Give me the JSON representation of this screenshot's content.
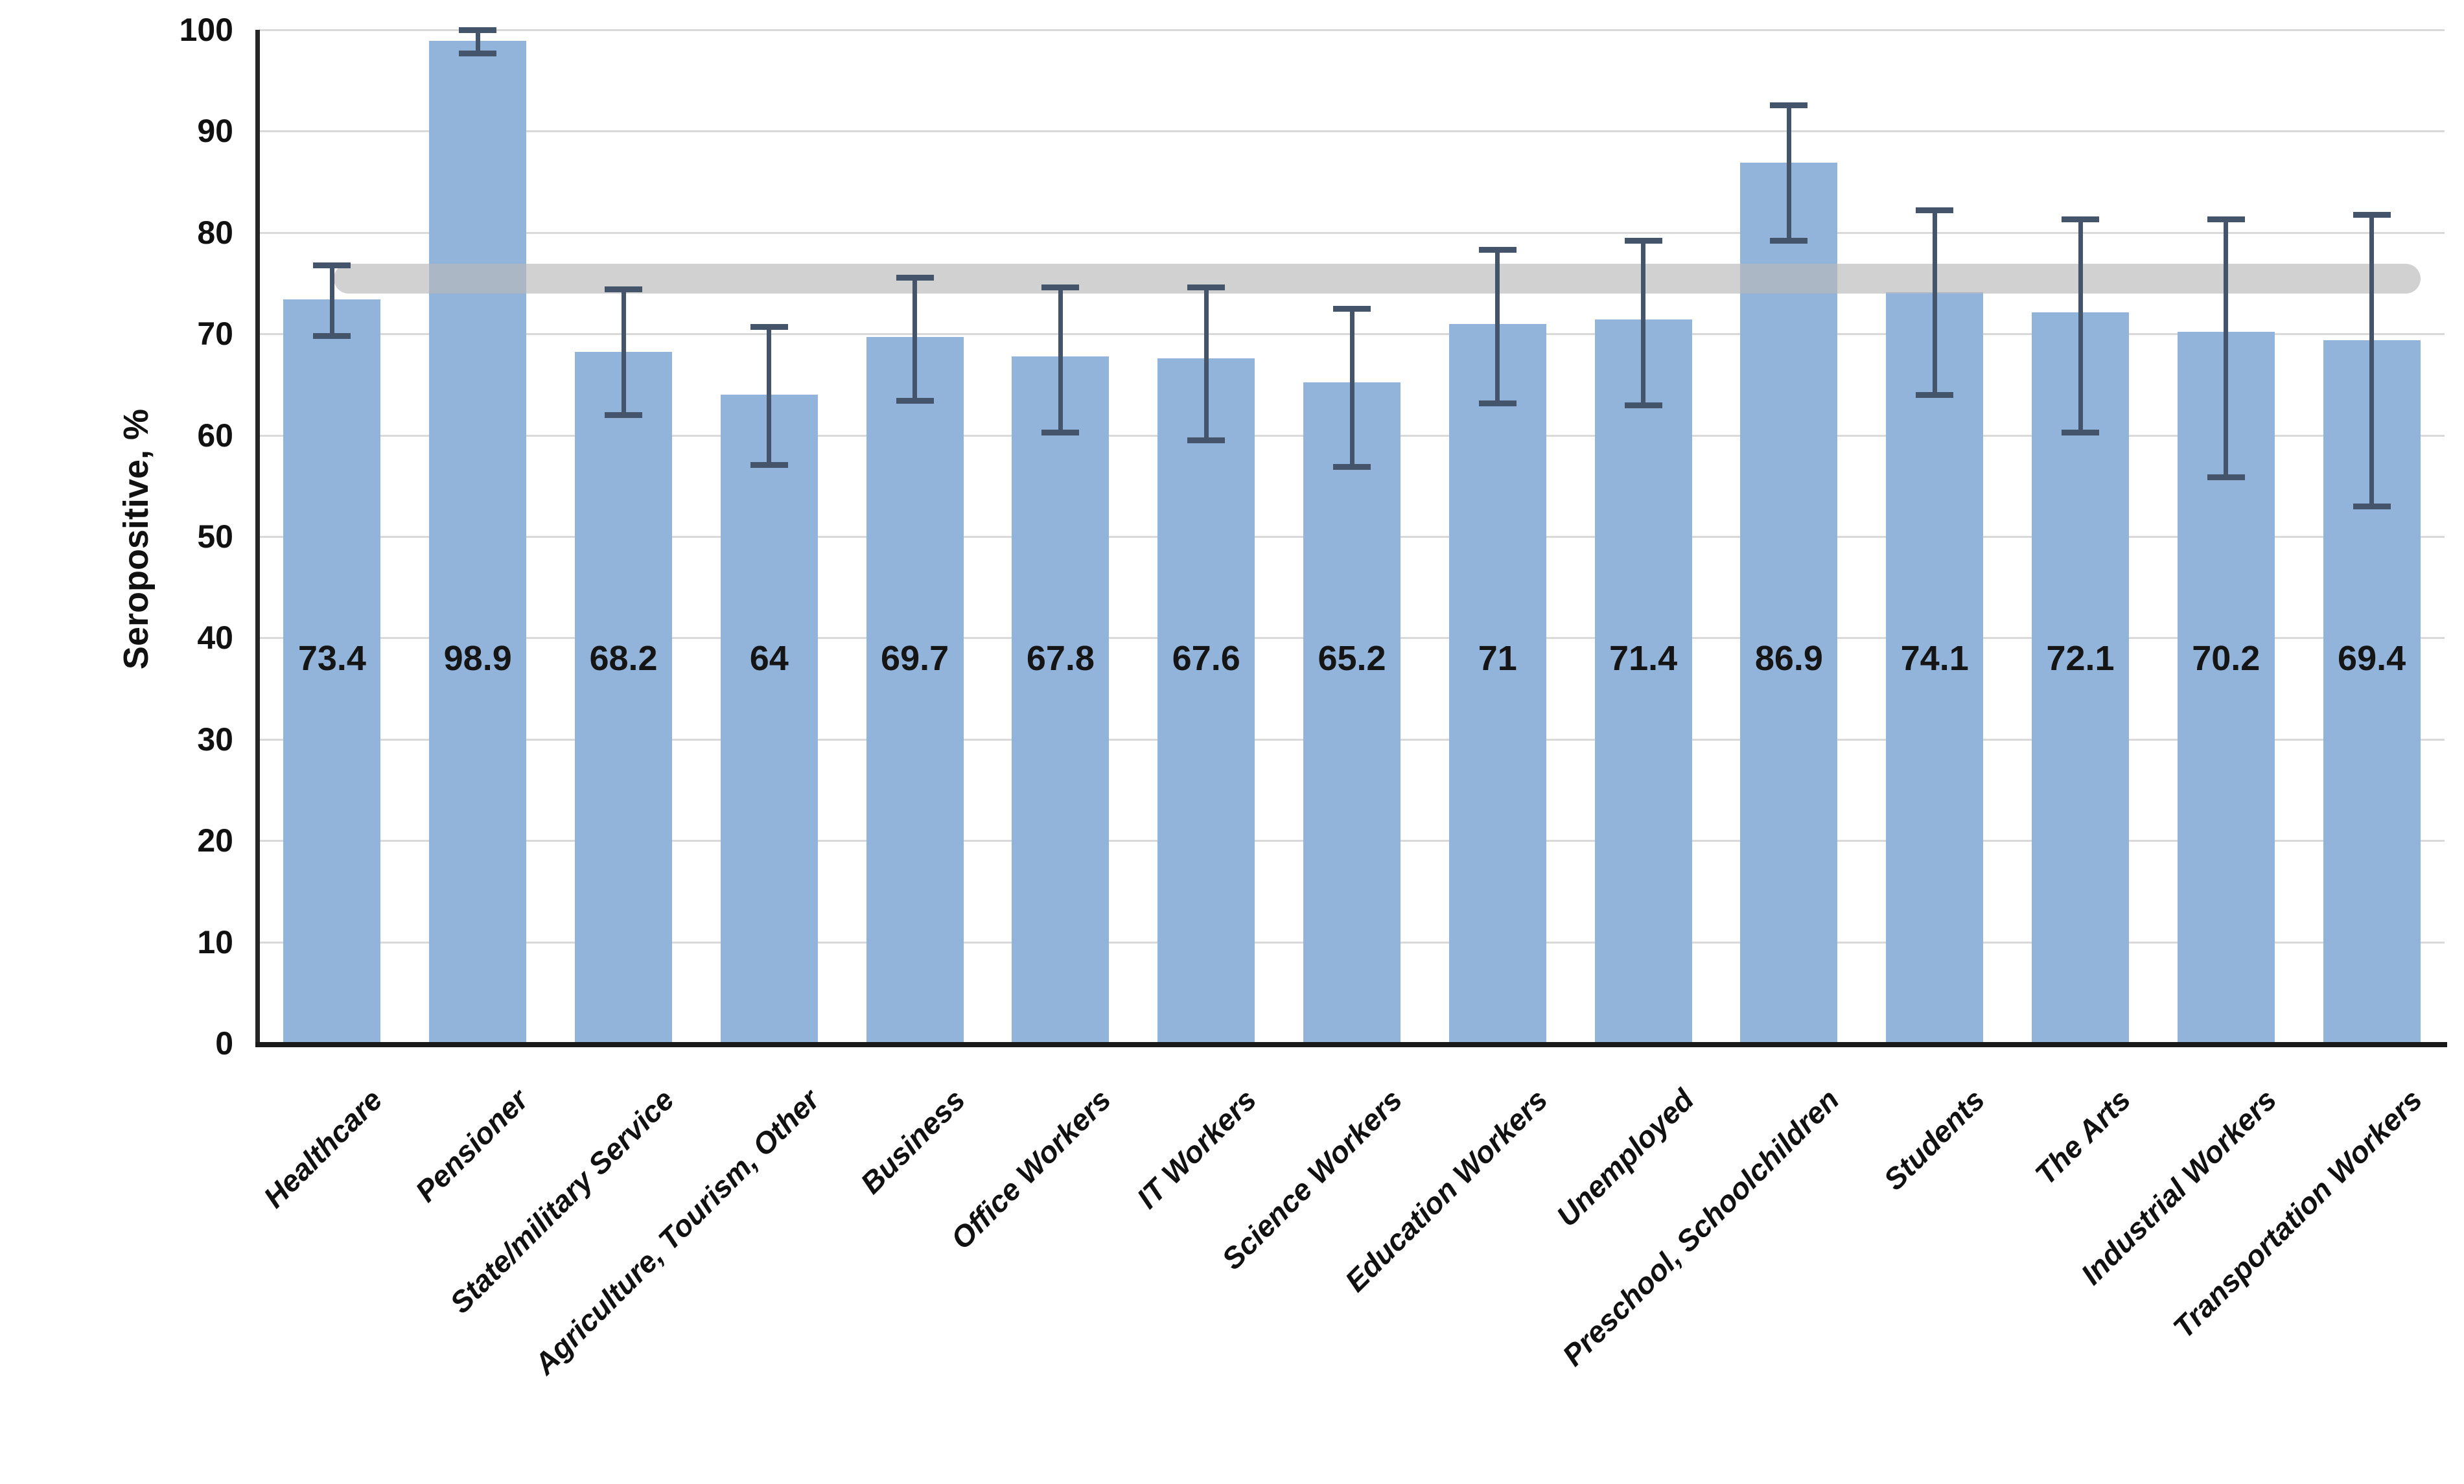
{
  "chart_data": {
    "type": "bar",
    "title": "",
    "xlabel": "",
    "ylabel": "Seropositive, %",
    "ylim": [
      0,
      100
    ],
    "yticks": [
      0,
      10,
      20,
      30,
      40,
      50,
      60,
      70,
      80,
      90,
      100
    ],
    "grid": true,
    "legend": "none",
    "categories": [
      "Healthcare",
      "Pensioner",
      "State/military Service",
      "Agriculture, Tourism, Other",
      "Business",
      "Office Workers",
      "IT Workers",
      "Science Workers",
      "Education Workers",
      "Unemployed",
      "Preschool, Schoolchildren",
      "Students",
      "The Arts",
      "Industrial Workers",
      "Transportation Workers"
    ],
    "values": [
      73.4,
      98.9,
      68.2,
      64,
      69.7,
      67.8,
      67.6,
      65.2,
      71,
      71.4,
      86.9,
      74.1,
      72.1,
      70.2,
      69.4
    ],
    "value_labels": [
      "73.4",
      "98.9",
      "68.2",
      "64",
      "69.7",
      "67.8",
      "67.6",
      "65.2",
      "71",
      "71.4",
      "86.9",
      "74.1",
      "72.1",
      "70.2",
      "69.4"
    ],
    "error_low": [
      69.8,
      97.7,
      62.0,
      57.1,
      63.4,
      60.3,
      59.5,
      56.9,
      63.2,
      63.0,
      79.2,
      64.0,
      60.3,
      55.9,
      53.0
    ],
    "error_high": [
      76.8,
      100.0,
      74.4,
      70.7,
      75.6,
      74.6,
      74.6,
      72.5,
      78.3,
      79.2,
      92.6,
      82.2,
      81.3,
      81.3,
      81.8
    ],
    "reference_band": {
      "from": 74.0,
      "to": 76.9,
      "shape": "rounded-capsule",
      "spans": "all-categories"
    },
    "colors": {
      "bar": "#92b4da",
      "error_bar": "#44546a",
      "reference_band": "#bdbdbd",
      "gridline": "#d9d9d9",
      "axis": "#1a1a1a",
      "text": "#111111"
    }
  }
}
